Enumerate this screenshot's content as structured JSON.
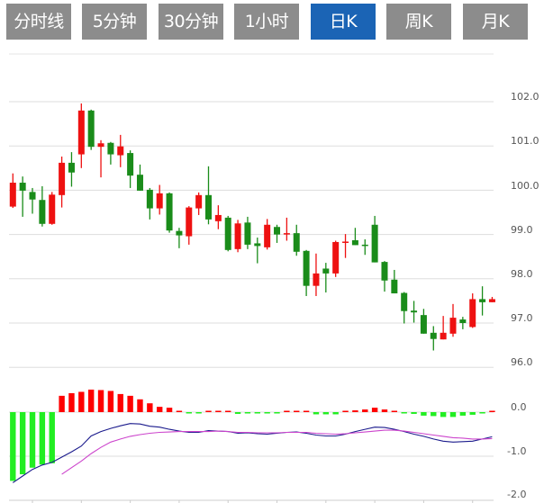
{
  "tabs": [
    {
      "label": "分时线",
      "active": false
    },
    {
      "label": "5分钟",
      "active": false
    },
    {
      "label": "30分钟",
      "active": false
    },
    {
      "label": "1小时",
      "active": false
    },
    {
      "label": "日K",
      "active": true
    },
    {
      "label": "周K",
      "active": false
    },
    {
      "label": "月K",
      "active": false
    }
  ],
  "colors": {
    "tab_bg": "#8c8c8c",
    "tab_active_bg": "#1b64b5",
    "up": "#ee1111",
    "down": "#1a8c1a",
    "macd_up": "#ff0000",
    "macd_down": "#22ee22",
    "dif": "#1a1a8c",
    "dea": "#cc44cc",
    "grid": "#dddddd"
  },
  "chart_data": [
    {
      "type": "candlestick",
      "title": "",
      "ylim": [
        96.0,
        102.0
      ],
      "y_ticks": [
        "102.0",
        "101.0",
        "100.0",
        "99.0",
        "98.0",
        "97.0",
        "96.0"
      ],
      "grid": true,
      "ohlc_order": [
        "open",
        "high",
        "low",
        "close"
      ],
      "candles": [
        [
          99.63,
          100.38,
          99.6,
          100.17
        ],
        [
          100.17,
          100.31,
          99.4,
          99.99
        ],
        [
          99.96,
          100.05,
          99.47,
          99.79
        ],
        [
          99.78,
          100.09,
          99.18,
          99.24
        ],
        [
          99.24,
          99.96,
          99.22,
          99.9
        ],
        [
          99.89,
          100.76,
          99.61,
          100.62
        ],
        [
          100.62,
          100.86,
          100.08,
          100.4
        ],
        [
          100.81,
          101.96,
          100.5,
          101.8
        ],
        [
          101.8,
          101.82,
          100.91,
          100.98
        ],
        [
          100.98,
          101.13,
          100.29,
          101.06
        ],
        [
          101.07,
          101.09,
          100.58,
          100.81
        ],
        [
          100.79,
          101.25,
          100.52,
          100.99
        ],
        [
          100.84,
          100.9,
          100.05,
          100.33
        ],
        [
          100.35,
          100.58,
          99.99,
          99.99
        ],
        [
          100.01,
          100.05,
          99.34,
          99.59
        ],
        [
          99.59,
          100.12,
          99.45,
          99.93
        ],
        [
          99.93,
          99.95,
          99.04,
          99.09
        ],
        [
          99.08,
          99.15,
          98.69,
          98.98
        ],
        [
          98.96,
          99.64,
          98.77,
          99.61
        ],
        [
          99.59,
          99.95,
          99.44,
          99.89
        ],
        [
          99.89,
          100.54,
          99.23,
          99.34
        ],
        [
          99.3,
          99.66,
          99.12,
          99.44
        ],
        [
          99.38,
          99.42,
          98.62,
          98.65
        ],
        [
          98.67,
          99.33,
          98.6,
          99.25
        ],
        [
          99.27,
          99.4,
          98.67,
          98.77
        ],
        [
          98.8,
          98.93,
          98.35,
          98.74
        ],
        [
          98.71,
          99.35,
          98.66,
          99.22
        ],
        [
          99.17,
          99.22,
          98.81,
          99.0
        ],
        [
          99.01,
          99.38,
          98.86,
          99.03
        ],
        [
          99.03,
          99.22,
          98.52,
          98.61
        ],
        [
          98.63,
          98.65,
          97.61,
          97.84
        ],
        [
          97.84,
          98.57,
          97.61,
          98.12
        ],
        [
          98.23,
          98.36,
          97.69,
          98.12
        ],
        [
          98.12,
          98.86,
          98.04,
          98.83
        ],
        [
          98.81,
          99.01,
          98.47,
          98.84
        ],
        [
          98.87,
          99.15,
          98.76,
          98.76
        ],
        [
          98.77,
          98.89,
          98.54,
          98.75
        ],
        [
          99.22,
          99.42,
          98.37,
          98.37
        ],
        [
          98.38,
          98.4,
          97.71,
          97.96
        ],
        [
          97.98,
          98.2,
          97.67,
          97.67
        ],
        [
          97.68,
          97.7,
          96.99,
          97.27
        ],
        [
          97.28,
          97.5,
          97.01,
          97.24
        ],
        [
          97.18,
          97.32,
          96.76,
          96.76
        ],
        [
          96.78,
          96.93,
          96.38,
          96.64
        ],
        [
          96.63,
          97.16,
          96.63,
          96.78
        ],
        [
          96.76,
          97.43,
          96.69,
          97.12
        ],
        [
          97.08,
          97.14,
          96.86,
          97.0
        ],
        [
          96.91,
          97.67,
          96.89,
          97.54
        ],
        [
          97.54,
          97.83,
          97.17,
          97.47
        ],
        [
          97.47,
          97.59,
          97.47,
          97.54
        ]
      ]
    },
    {
      "type": "bar+line",
      "title": "",
      "ylim": [
        -2.0,
        0.0
      ],
      "y_ticks": [
        "0.0",
        "-1.0",
        "-2.0"
      ],
      "grid": true,
      "histogram": [
        -1.56,
        -1.41,
        -1.26,
        -1.19,
        -1.16,
        0.37,
        0.43,
        0.46,
        0.51,
        0.5,
        0.48,
        0.41,
        0.37,
        0.29,
        0.2,
        0.12,
        0.1,
        0.02,
        -0.01,
        -0.01,
        0.02,
        0,
        0,
        -0.04,
        -0.02,
        -0.02,
        -0.03,
        -0.01,
        0,
        0.02,
        0,
        -0.05,
        -0.05,
        -0.05,
        0,
        0.04,
        0.06,
        0.1,
        0.06,
        0.02,
        -0.01,
        -0.04,
        -0.08,
        -0.09,
        -0.11,
        -0.11,
        -0.08,
        -0.06,
        -0.01,
        0.03
      ],
      "series": [
        {
          "values": [
            -1.6,
            -1.45,
            -1.3,
            -1.2,
            -1.14,
            -1.02,
            -0.9,
            -0.77,
            -0.54,
            -0.44,
            -0.37,
            -0.31,
            -0.26,
            -0.27,
            -0.32,
            -0.34,
            -0.39,
            -0.43,
            -0.46,
            -0.46,
            -0.42,
            -0.43,
            -0.44,
            -0.48,
            -0.47,
            -0.49,
            -0.5,
            -0.48,
            -0.46,
            -0.45,
            -0.48,
            -0.52,
            -0.54,
            -0.54,
            -0.5,
            -0.44,
            -0.39,
            -0.34,
            -0.35,
            -0.39,
            -0.44,
            -0.5,
            -0.55,
            -0.61,
            -0.66,
            -0.68,
            -0.67,
            -0.66,
            -0.61,
            -0.56
          ]
        },
        {
          "values": [
            null,
            null,
            null,
            null,
            null,
            -1.41,
            -1.26,
            -1.11,
            -0.94,
            -0.8,
            -0.68,
            -0.61,
            -0.55,
            -0.51,
            -0.48,
            -0.46,
            -0.45,
            -0.44,
            -0.44,
            -0.44,
            -0.44,
            -0.43,
            -0.44,
            -0.46,
            -0.46,
            -0.47,
            -0.47,
            -0.47,
            -0.46,
            -0.46,
            -0.46,
            -0.48,
            -0.49,
            -0.5,
            -0.49,
            -0.47,
            -0.45,
            -0.43,
            -0.41,
            -0.41,
            -0.43,
            -0.46,
            -0.49,
            -0.52,
            -0.55,
            -0.58,
            -0.59,
            -0.61,
            -0.61,
            -0.6
          ]
        }
      ]
    }
  ]
}
